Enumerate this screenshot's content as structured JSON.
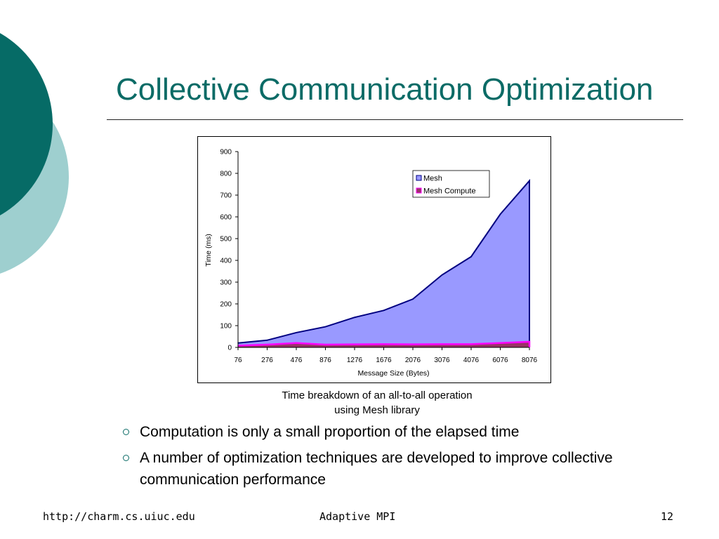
{
  "slide": {
    "title": "Collective Communication Optimization",
    "caption_lines": [
      "Time breakdown of an all-to-all operation",
      "using Mesh library"
    ],
    "bullets": [
      "Computation is only a small proportion of the elapsed time",
      "A number of optimization techniques are developed to improve collective communication performance"
    ],
    "footer": {
      "left": "http://charm.cs.uiuc.edu",
      "center": "Adaptive MPI",
      "right": "12"
    },
    "colors": {
      "title": "#0b6b66",
      "deco_dark": "#066b66",
      "deco_light": "#9ecfcf"
    }
  },
  "chart_data": {
    "type": "area",
    "categories": [
      "76",
      "276",
      "476",
      "876",
      "1276",
      "1676",
      "2076",
      "3076",
      "4076",
      "6076",
      "8076"
    ],
    "series": [
      {
        "name": "Mesh",
        "values": [
          20,
          33,
          68,
          95,
          138,
          170,
          222,
          333,
          417,
          612,
          766
        ],
        "fill": "#9999ff",
        "stroke": "#000080"
      },
      {
        "name": "Mesh Compute",
        "values": [
          8,
          13,
          20,
          13,
          14,
          15,
          14,
          15,
          15,
          20,
          26
        ],
        "fill": "#993366",
        "stroke": "#ff00ff"
      }
    ],
    "xlabel": "Message Size (Bytes)",
    "ylabel": "Time (ms)",
    "ylim": [
      0,
      900
    ],
    "yticks": [
      0,
      100,
      200,
      300,
      400,
      500,
      600,
      700,
      800,
      900
    ],
    "grid": false,
    "legend_position": "top-right"
  }
}
